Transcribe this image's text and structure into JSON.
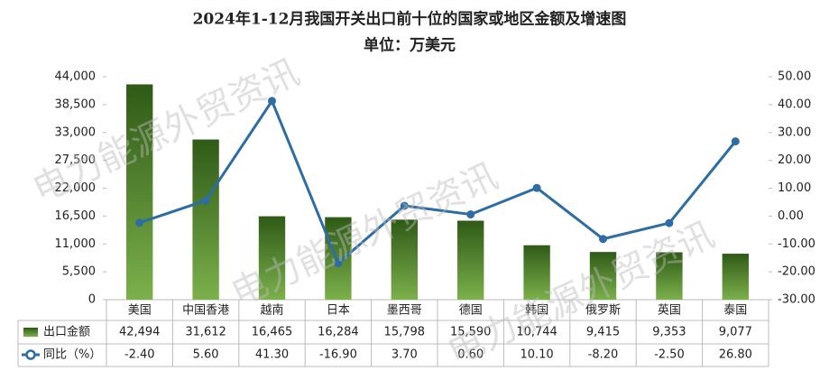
{
  "chart_data": {
    "type": "bar",
    "title": "2024年1-12月我国开关出口前十位的国家或地区金额及增速图",
    "subtitle": "单位：万美元",
    "watermark": "电力能源外贸资讯",
    "categories": [
      "美国",
      "中国香港",
      "越南",
      "日本",
      "墨西哥",
      "德国",
      "韩国",
      "俄罗斯",
      "英国",
      "泰国"
    ],
    "series": [
      {
        "name": "出口金额",
        "type": "bar",
        "color": "#4a7d2a",
        "values": [
          42494,
          31612,
          16465,
          16284,
          15798,
          15590,
          10744,
          9415,
          9353,
          9077
        ],
        "value_labels": [
          "42,494",
          "31,612",
          "16,465",
          "16,284",
          "15,798",
          "15,590",
          "10,744",
          "9,415",
          "9,353",
          "9,077"
        ]
      },
      {
        "name": "同比（%）",
        "type": "line",
        "axis": "y2",
        "color": "#2e6da4",
        "values": [
          -2.4,
          5.6,
          41.3,
          -16.9,
          3.7,
          0.6,
          10.1,
          -8.2,
          -2.5,
          26.8
        ],
        "value_labels": [
          "-2.40",
          "5.60",
          "41.30",
          "-16.90",
          "3.70",
          "0.60",
          "10.10",
          "-8.20",
          "-2.50",
          "26.80"
        ]
      }
    ],
    "ylim": [
      0,
      44000
    ],
    "yticks": [
      0,
      {
        "value": 5500,
        "label": "5,500"
      },
      {
        "value": 11000,
        "label": "11,000"
      },
      {
        "value": 16500,
        "label": "16,500"
      },
      {
        "value": 22000,
        "label": "22,000"
      },
      {
        "value": 27500,
        "label": "27,500"
      },
      {
        "value": 33000,
        "label": "33,000"
      },
      {
        "value": 38500,
        "label": "38,500"
      },
      {
        "value": 44000,
        "label": "44,000"
      }
    ],
    "y2lim": [
      -30,
      50
    ],
    "y2ticks": [
      {
        "value": -30,
        "label": "-30.00"
      },
      {
        "value": -20,
        "label": "-20.00"
      },
      {
        "value": -10,
        "label": "-10.00"
      },
      {
        "value": 0,
        "label": "0.00"
      },
      {
        "value": 10,
        "label": "10.00"
      },
      {
        "value": 20,
        "label": "20.00"
      },
      {
        "value": 30,
        "label": "30.00"
      },
      {
        "value": 40,
        "label": "40.00"
      },
      {
        "value": 50,
        "label": "50.00"
      }
    ]
  }
}
